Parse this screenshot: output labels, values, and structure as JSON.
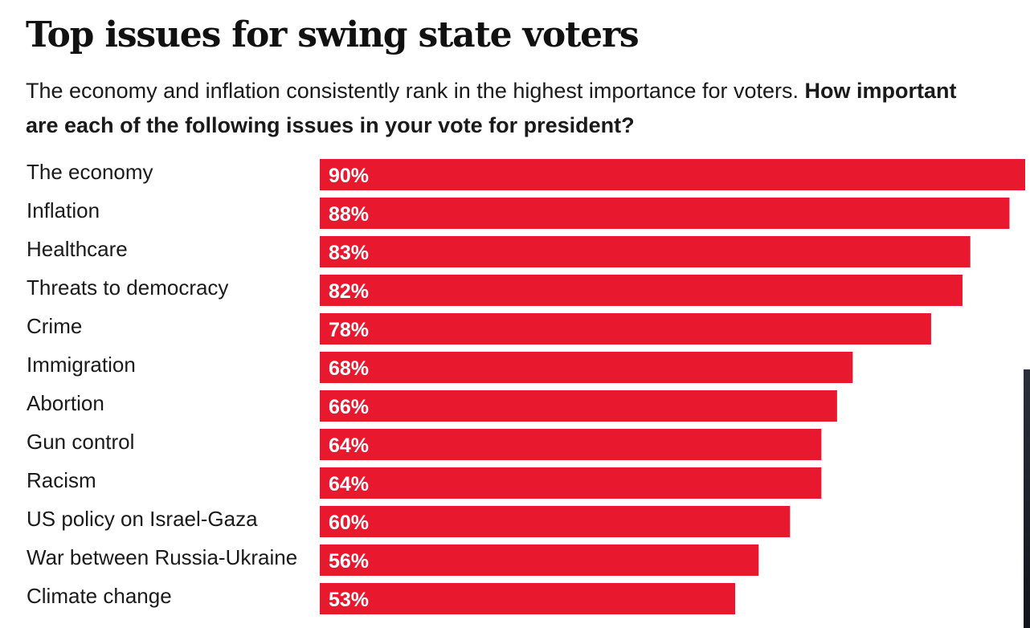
{
  "header": {
    "title": "Top issues for swing state voters",
    "subtitle_plain": "The economy and inflation consistently rank in the highest importance for voters.",
    "subtitle_question": "How important are each of the following issues in your vote for president?"
  },
  "colors": {
    "bar": "#e8192f",
    "value_text": "#ffffff",
    "label_text": "#1a1a1a"
  },
  "chart_data": {
    "type": "bar",
    "orientation": "horizontal",
    "title": "Top issues for swing state voters",
    "xlim": [
      0,
      90
    ],
    "grid": false,
    "categories": [
      "The economy",
      "Inflation",
      "Healthcare",
      "Threats to democracy",
      "Crime",
      "Immigration",
      "Abortion",
      "Gun control",
      "Racism",
      "US policy on Israel-Gaza",
      "War between Russia-Ukraine",
      "Climate change"
    ],
    "values": [
      90,
      88,
      83,
      82,
      78,
      68,
      66,
      64,
      64,
      60,
      56,
      53
    ],
    "value_labels": [
      "90%",
      "88%",
      "83%",
      "82%",
      "78%",
      "68%",
      "66%",
      "64%",
      "64%",
      "60%",
      "56%",
      "53%"
    ]
  }
}
